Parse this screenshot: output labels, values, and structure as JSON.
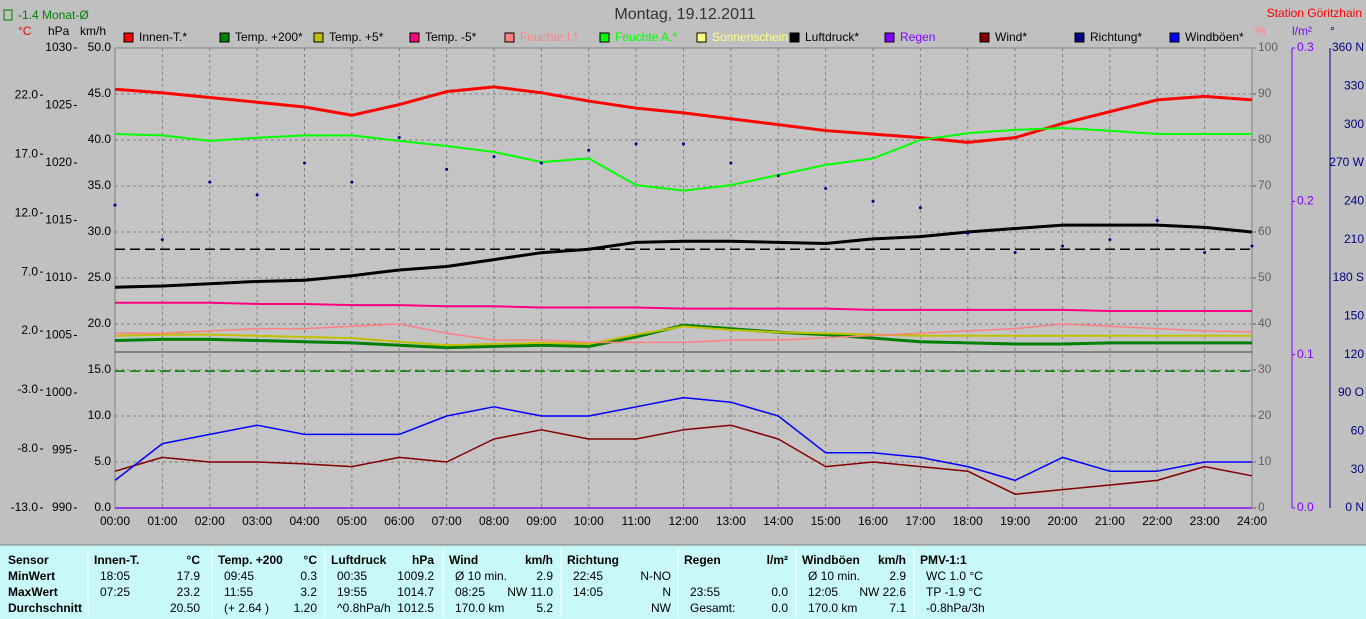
{
  "chart_data": {
    "type": "line",
    "title": "Montag, 19.12.2011",
    "station": "Station Göritzhain",
    "month_avg_label": "-1.4 Monat-Ø",
    "xlim": [
      0,
      24
    ],
    "x": [
      0,
      1,
      2,
      3,
      4,
      5,
      6,
      7,
      8,
      9,
      10,
      11,
      12,
      13,
      14,
      15,
      16,
      17,
      18,
      19,
      20,
      21,
      22,
      23,
      24
    ],
    "xticks": [
      {
        "value": 0,
        "label": "00:00"
      },
      {
        "value": 1,
        "label": "01:00"
      },
      {
        "value": 2,
        "label": "02:00"
      },
      {
        "value": 3,
        "label": "03:00"
      },
      {
        "value": 4,
        "label": "04:00"
      },
      {
        "value": 5,
        "label": "05:00"
      },
      {
        "value": 6,
        "label": "06:00"
      },
      {
        "value": 7,
        "label": "07:00"
      },
      {
        "value": 8,
        "label": "08:00"
      },
      {
        "value": 9,
        "label": "09:00"
      },
      {
        "value": 10,
        "label": "10:00"
      },
      {
        "value": 11,
        "label": "11:00"
      },
      {
        "value": 12,
        "label": "12:00"
      },
      {
        "value": 13,
        "label": "13:00"
      },
      {
        "value": 14,
        "label": "14:00"
      },
      {
        "value": 15,
        "label": "15:00"
      },
      {
        "value": 16,
        "label": "16:00"
      },
      {
        "value": 17,
        "label": "17:00"
      },
      {
        "value": 18,
        "label": "18:00"
      },
      {
        "value": 19,
        "label": "19:00"
      },
      {
        "value": 20,
        "label": "20:00"
      },
      {
        "value": 21,
        "label": "21:00"
      },
      {
        "value": 22,
        "label": "22:00"
      },
      {
        "value": 23,
        "label": "23:00"
      },
      {
        "value": 24,
        "label": "24:00"
      }
    ],
    "grid_axis": "kmh",
    "axes": {
      "temp": {
        "label": "°C",
        "color": "#ff0000",
        "tick_color": "#000000",
        "lim": [
          -13,
          26
        ],
        "ticks": [
          {
            "value": 22,
            "label": "22.0"
          },
          {
            "value": 17,
            "label": "17.0"
          },
          {
            "value": 12,
            "label": "12.0"
          },
          {
            "value": 7,
            "label": "7.0"
          },
          {
            "value": 2,
            "label": "2.0"
          },
          {
            "value": -3,
            "label": "-3.0"
          },
          {
            "value": -8,
            "label": "-8.0"
          },
          {
            "value": -13,
            "label": "-13.0"
          }
        ]
      },
      "hpa": {
        "label": "hPa",
        "color": "#000000",
        "tick_color": "#000000",
        "lim": [
          990,
          1030
        ],
        "ticks": [
          1030,
          1025,
          1020,
          1015,
          1010,
          1005,
          1000,
          995,
          990
        ]
      },
      "kmh": {
        "label": "km/h",
        "color": "#000000",
        "tick_color": "#000000",
        "lim": [
          0,
          50
        ],
        "ticks": [
          {
            "value": 50,
            "label": "50.0"
          },
          {
            "value": 45,
            "label": "45.0"
          },
          {
            "value": 40,
            "label": "40.0"
          },
          {
            "value": 35,
            "label": "35.0"
          },
          {
            "value": 30,
            "label": "30.0"
          },
          {
            "value": 25,
            "label": "25.0"
          },
          {
            "value": 20,
            "label": "20.0"
          },
          {
            "value": 15,
            "label": "15.0"
          },
          {
            "value": 10,
            "label": "10.0"
          },
          {
            "value": 5,
            "label": "5.0"
          },
          {
            "value": 0,
            "label": "0.0"
          }
        ]
      },
      "pct": {
        "label": "%",
        "color": "#ff8080",
        "tick_color": "#606060",
        "lim": [
          0,
          100
        ],
        "ticks": [
          100,
          90,
          80,
          70,
          60,
          50,
          40,
          30,
          20,
          10,
          0
        ]
      },
      "rain": {
        "label": "l/m²",
        "color": "#8000ff",
        "tick_color": "#8000ff",
        "lim": [
          0,
          0.3
        ],
        "ticks": [
          {
            "value": 0.3,
            "label": "0.3"
          },
          {
            "value": 0.2,
            "label": "0.2"
          },
          {
            "value": 0.1,
            "label": "0.1"
          },
          {
            "value": 0,
            "label": "0.0"
          }
        ]
      },
      "dir": {
        "label": "°",
        "color": "#000080",
        "tick_color": "#000080",
        "lim": [
          0,
          360
        ],
        "ticks": [
          {
            "value": 360,
            "label": "360 N"
          },
          330,
          300,
          {
            "value": 270,
            "label": "270 W"
          },
          240,
          210,
          {
            "value": 180,
            "label": "180 S"
          },
          150,
          120,
          {
            "value": 90,
            "label": "90 O"
          },
          60,
          30,
          {
            "value": 0,
            "label": "0 N"
          }
        ]
      }
    },
    "reference_lines": [
      {
        "axis": "hpa",
        "value": 1012.5,
        "color": "#000000"
      },
      {
        "axis": "temp",
        "value": -1.4,
        "color": "#008000"
      }
    ],
    "series": [
      {
        "name": "Innen-T.*",
        "color": "#ff0000",
        "axis": "temp",
        "width": 3,
        "values": [
          22.5,
          22.2,
          21.8,
          21.4,
          21.0,
          20.3,
          21.2,
          22.3,
          22.7,
          22.2,
          21.5,
          20.9,
          20.5,
          20.0,
          19.5,
          19.0,
          18.7,
          18.4,
          18.0,
          18.4,
          19.6,
          20.6,
          21.6,
          21.9,
          21.6
        ]
      },
      {
        "name": "Temp. +200*",
        "color": "#008000",
        "axis": "temp",
        "width": 3,
        "values": [
          1.2,
          1.3,
          1.3,
          1.2,
          1.1,
          1.0,
          0.8,
          0.6,
          0.7,
          0.8,
          0.7,
          1.5,
          2.5,
          2.2,
          1.9,
          1.7,
          1.4,
          1.1,
          1.0,
          0.9,
          0.9,
          1.0,
          1.0,
          1.0,
          1.0
        ]
      },
      {
        "name": "Temp. +5*",
        "color": "#c0c000",
        "axis": "temp",
        "width": 2,
        "values": [
          1.6,
          1.7,
          1.7,
          1.6,
          1.5,
          1.4,
          1.1,
          0.8,
          0.9,
          1.0,
          0.9,
          1.7,
          2.4,
          2.1,
          1.9,
          1.8,
          1.7,
          1.6,
          1.6,
          1.6,
          1.6,
          1.6,
          1.6,
          1.6,
          1.6
        ]
      },
      {
        "name": "Temp. -5*",
        "color": "#ff0080",
        "axis": "temp",
        "width": 2,
        "values": [
          4.4,
          4.4,
          4.4,
          4.3,
          4.3,
          4.2,
          4.2,
          4.1,
          4.1,
          4.0,
          4.0,
          4.0,
          3.9,
          3.9,
          3.9,
          3.9,
          3.8,
          3.8,
          3.8,
          3.8,
          3.8,
          3.7,
          3.7,
          3.7,
          3.7
        ]
      },
      {
        "name": "Feuchte I.*",
        "color": "#ff8080",
        "label_color": "#ff8080",
        "axis": "pct",
        "width": 1.5,
        "values": [
          38,
          38,
          38.5,
          39,
          39,
          39.5,
          40,
          38,
          36.5,
          36.5,
          36,
          36,
          36,
          36.5,
          36.5,
          37,
          37.5,
          38,
          38.5,
          39,
          40,
          39.5,
          39,
          38.5,
          38.3
        ]
      },
      {
        "name": "Feuchte A.*",
        "color": "#00ff00",
        "label_color": "#00ff00",
        "axis": "pct",
        "width": 2,
        "values": [
          81.3,
          81,
          79.8,
          80.5,
          81,
          81,
          79.8,
          78.7,
          77.4,
          75.2,
          76,
          70.2,
          69,
          70.2,
          72.4,
          74.6,
          76,
          80,
          81.5,
          82.2,
          82.6,
          82,
          81.3,
          81.3,
          81.3
        ]
      },
      {
        "name": "Sonnenschein",
        "color": "#ffff80",
        "label_color": "#ffff80",
        "axis": "pct",
        "width": 1.5,
        "values": [
          0,
          0,
          0,
          0,
          0,
          0,
          0,
          0,
          0,
          0,
          0,
          0,
          0,
          0,
          0,
          0,
          0,
          0,
          0,
          0,
          0,
          0,
          0,
          0,
          0
        ]
      },
      {
        "name": "Luftdruck*",
        "color": "#000000",
        "axis": "hpa",
        "width": 3,
        "values": [
          1009.2,
          1009.3,
          1009.5,
          1009.7,
          1009.8,
          1010.2,
          1010.7,
          1011.0,
          1011.6,
          1012.2,
          1012.5,
          1013.1,
          1013.2,
          1013.2,
          1013.1,
          1013.0,
          1013.4,
          1013.6,
          1014.0,
          1014.3,
          1014.6,
          1014.6,
          1014.6,
          1014.4,
          1014.0
        ]
      },
      {
        "name": "Regen",
        "color": "#8000ff",
        "label_color": "#8000ff",
        "axis": "rain",
        "width": 1.5,
        "values": [
          0,
          0,
          0,
          0,
          0,
          0,
          0,
          0,
          0,
          0,
          0,
          0,
          0,
          0,
          0,
          0,
          0,
          0,
          0,
          0,
          0,
          0,
          0,
          0,
          0
        ]
      },
      {
        "name": "Wind*",
        "color": "#800000",
        "axis": "kmh",
        "width": 1.5,
        "values": [
          4,
          5.5,
          5,
          5,
          4.8,
          4.5,
          5.5,
          5,
          7.5,
          8.5,
          7.5,
          7.5,
          8.5,
          9,
          7.5,
          4.5,
          5,
          4.5,
          4,
          1.5,
          2,
          2.5,
          3,
          4.5,
          3.5
        ]
      },
      {
        "name": "Richtung*",
        "color": "#000080",
        "axis": "dir",
        "style": "dots",
        "values": [
          237,
          210,
          255,
          245,
          270,
          255,
          290,
          265,
          275,
          270,
          280,
          285,
          285,
          270,
          260,
          250,
          240,
          235,
          215,
          200,
          205,
          210,
          225,
          200,
          205
        ]
      },
      {
        "name": "Windböen*",
        "color": "#0000ff",
        "axis": "kmh",
        "width": 1.5,
        "values": [
          3,
          7,
          8,
          9,
          8,
          8,
          8,
          10,
          11,
          10,
          10,
          11,
          12,
          11.5,
          10,
          6,
          6,
          5.5,
          4.5,
          3,
          5.5,
          4,
          4,
          5,
          5
        ]
      }
    ]
  },
  "table": {
    "columns": [
      {
        "header": "Sensor",
        "cells": [
          [
            "MinWert"
          ],
          [
            "MaxWert"
          ],
          [
            "Durchschnitt"
          ]
        ]
      },
      {
        "header": "Innen-T.",
        "unit": "°C",
        "cells": [
          [
            "18:05",
            "17.9"
          ],
          [
            "07:25",
            "23.2"
          ],
          [
            null,
            "20.50"
          ]
        ]
      },
      {
        "header": "Temp. +200",
        "unit": "°C",
        "cells": [
          [
            "09:45",
            "0.3"
          ],
          [
            "11:55",
            "3.2"
          ],
          [
            "(+ 2.64 )",
            "1.20"
          ]
        ]
      },
      {
        "header": "Luftdruck",
        "unit": "hPa",
        "cells": [
          [
            "00:35",
            "1009.2"
          ],
          [
            "19:55",
            "1014.7"
          ],
          [
            "^0.8hPa/h",
            "1012.5"
          ]
        ]
      },
      {
        "header": "Wind",
        "unit": "km/h",
        "cells": [
          [
            "Ø 10 min.",
            "2.9"
          ],
          [
            "08:25",
            "NW 11.0"
          ],
          [
            "170.0 km",
            "5.2"
          ]
        ]
      },
      {
        "header": "Richtung",
        "cells": [
          [
            "22:45",
            "N-NO"
          ],
          [
            "14:05",
            "N"
          ],
          [
            null,
            "NW"
          ]
        ]
      },
      {
        "header": "Regen",
        "unit": "l/m²",
        "cells": [
          [
            null,
            null
          ],
          [
            "23:55",
            "0.0"
          ],
          [
            "Gesamt:",
            "0.0"
          ]
        ]
      },
      {
        "header": "Windböen",
        "unit": "km/h",
        "cells": [
          [
            "Ø 10 min.",
            "2.9"
          ],
          [
            "12:05",
            "NW 22.6"
          ],
          [
            "170.0 km",
            "7.1"
          ]
        ]
      },
      {
        "header": "PMV-1:1",
        "cells": [
          [
            "WC 1.0 °C"
          ],
          [
            "TP -1.9 °C"
          ],
          [
            "-0.8hPa/3h"
          ]
        ]
      }
    ]
  }
}
